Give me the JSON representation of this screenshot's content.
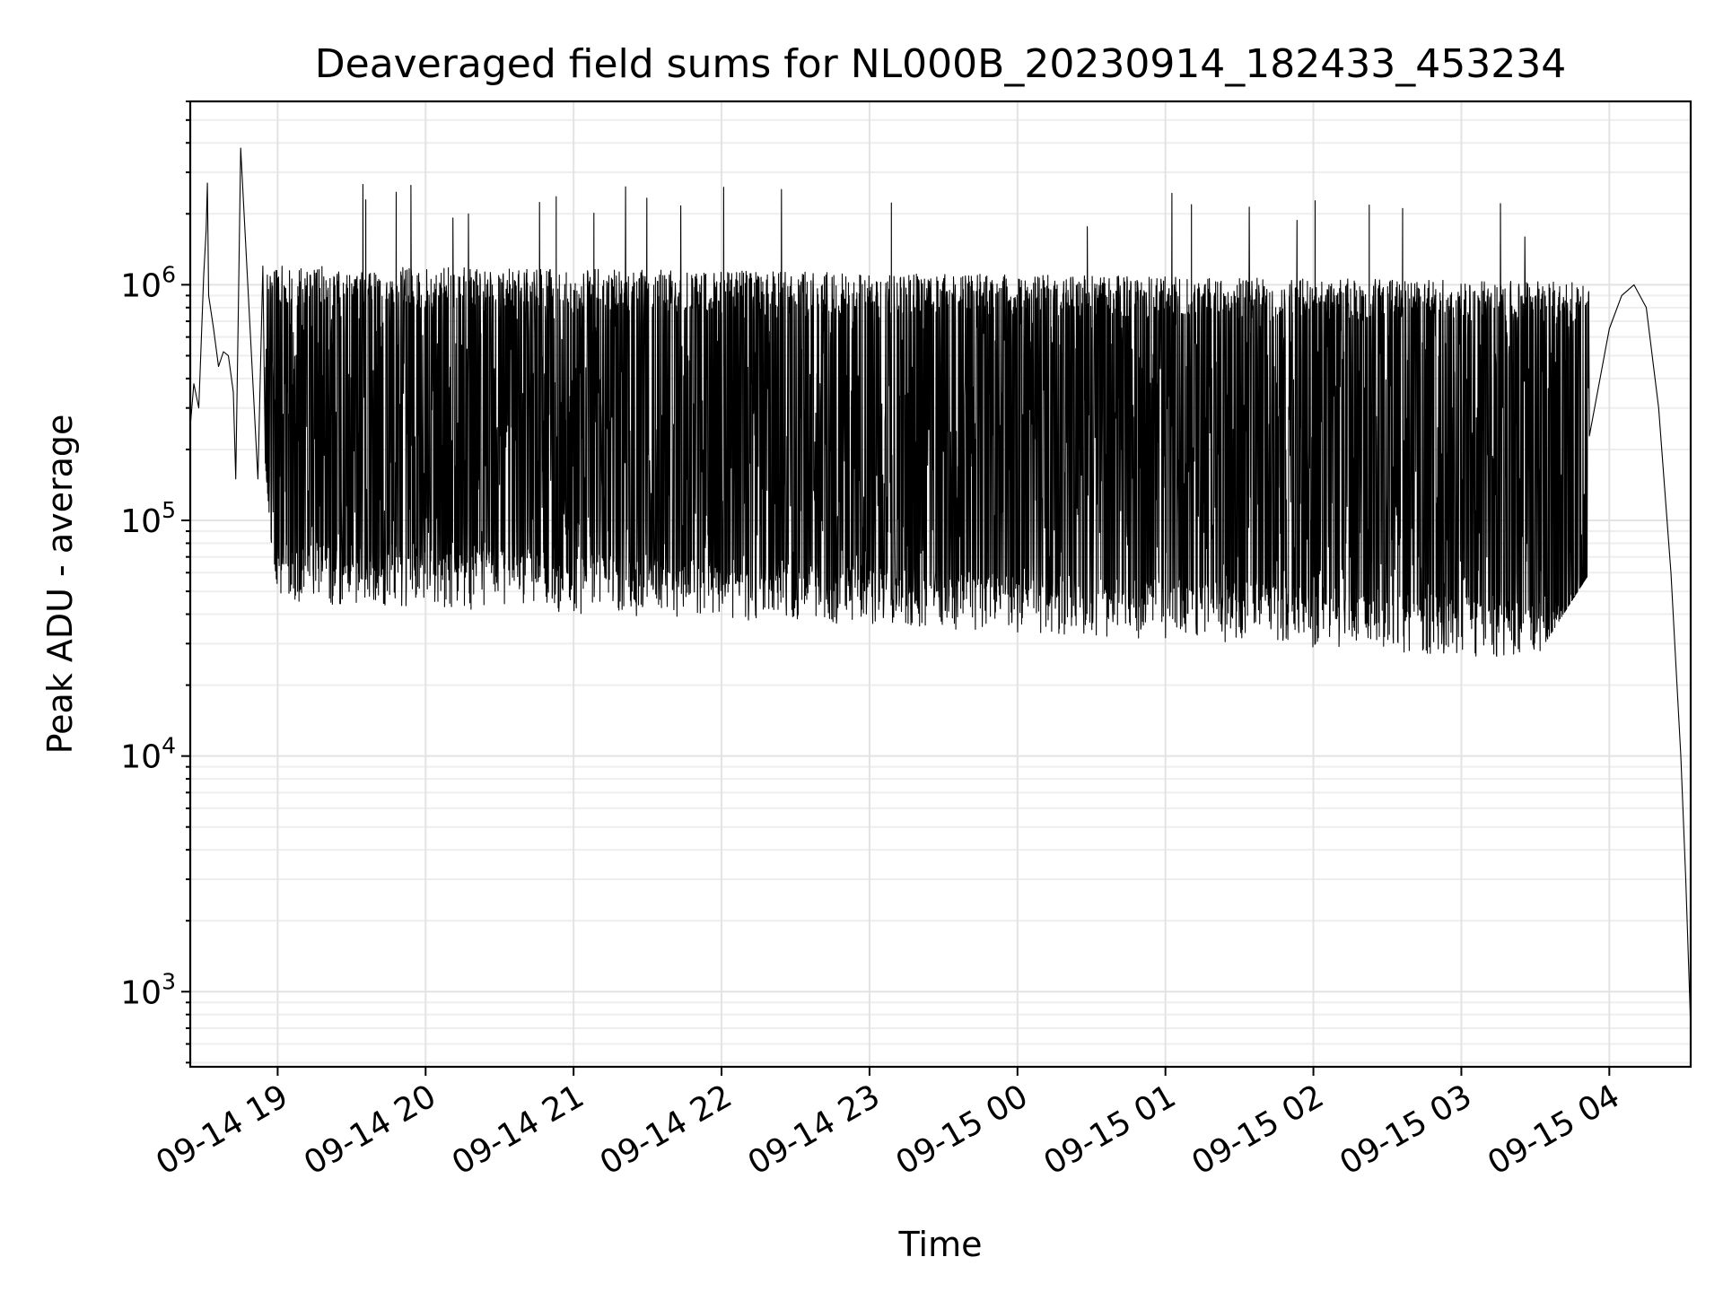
{
  "chart_data": {
    "type": "line",
    "title": "Deaveraged field sums for NL000B_20230914_182433_453234",
    "xlabel": "Time",
    "ylabel": "Peak ADU - average",
    "yscale": "log",
    "ylim": [
      480,
      6000000
    ],
    "xlim": [
      "2023-09-14T18:24:33",
      "2023-09-15T04:33:00"
    ],
    "grid": true,
    "legend": "none",
    "line_color": "#000000",
    "y_ticks": [
      {
        "value": 1000,
        "base": "10",
        "exp": "3"
      },
      {
        "value": 10000,
        "base": "10",
        "exp": "4"
      },
      {
        "value": 100000,
        "base": "10",
        "exp": "5"
      },
      {
        "value": 1000000,
        "base": "10",
        "exp": "6"
      }
    ],
    "x_ticks": [
      {
        "value": "2023-09-14T19:00",
        "label": "09-14 19"
      },
      {
        "value": "2023-09-14T20:00",
        "label": "09-14 20"
      },
      {
        "value": "2023-09-14T21:00",
        "label": "09-14 21"
      },
      {
        "value": "2023-09-14T22:00",
        "label": "09-14 22"
      },
      {
        "value": "2023-09-14T23:00",
        "label": "09-14 23"
      },
      {
        "value": "2023-09-15T00:00",
        "label": "09-15 00"
      },
      {
        "value": "2023-09-15T01:00",
        "label": "09-15 01"
      },
      {
        "value": "2023-09-15T02:00",
        "label": "09-15 02"
      },
      {
        "value": "2023-09-15T03:00",
        "label": "09-15 03"
      },
      {
        "value": "2023-09-15T04:00",
        "label": "09-15 04"
      }
    ],
    "series": [
      {
        "points": [
          [
            "2023-09-14T18:24:33",
            250000
          ],
          [
            "2023-09-14T18:26",
            380000
          ],
          [
            "2023-09-14T18:28",
            300000
          ],
          [
            "2023-09-14T18:30",
            1100000
          ],
          [
            "2023-09-14T18:31",
            1700000
          ],
          [
            "2023-09-14T18:31:30",
            2700000
          ],
          [
            "2023-09-14T18:32",
            900000
          ],
          [
            "2023-09-14T18:34",
            650000
          ],
          [
            "2023-09-14T18:36",
            450000
          ],
          [
            "2023-09-14T18:38",
            520000
          ],
          [
            "2023-09-14T18:40",
            500000
          ],
          [
            "2023-09-14T18:42",
            350000
          ],
          [
            "2023-09-14T18:43",
            150000
          ],
          [
            "2023-09-14T18:44",
            700000
          ],
          [
            "2023-09-14T18:45",
            3800000
          ],
          [
            "2023-09-14T18:52",
            150000
          ],
          [
            "2023-09-14T18:54",
            1200000
          ],
          [
            "2023-09-14T19:00",
            180000
          ],
          [
            "2023-09-14T19:30",
            150000
          ],
          [
            "2023-09-14T20:00",
            140000
          ],
          [
            "2023-09-14T20:30",
            145000
          ],
          [
            "2023-09-14T21:00",
            150000
          ],
          [
            "2023-09-14T21:30",
            145000
          ],
          [
            "2023-09-14T22:00",
            140000
          ],
          [
            "2023-09-14T22:30",
            135000
          ],
          [
            "2023-09-14T23:00",
            130000
          ],
          [
            "2023-09-14T23:30",
            120000
          ],
          [
            "2023-09-15T00:00",
            110000
          ],
          [
            "2023-09-15T00:30",
            100000
          ],
          [
            "2023-09-15T01:00",
            95000
          ],
          [
            "2023-09-15T01:30",
            90000
          ],
          [
            "2023-09-15T02:00",
            90000
          ],
          [
            "2023-09-15T02:30",
            90000
          ],
          [
            "2023-09-15T03:00",
            95000
          ],
          [
            "2023-09-15T03:30",
            130000
          ],
          [
            "2023-09-15T03:52",
            300000
          ],
          [
            "2023-09-15T04:00",
            650000
          ],
          [
            "2023-09-15T04:05",
            900000
          ],
          [
            "2023-09-15T04:10",
            1000000
          ],
          [
            "2023-09-15T04:15",
            800000
          ],
          [
            "2023-09-15T04:20",
            300000
          ],
          [
            "2023-09-15T04:25",
            60000
          ],
          [
            "2023-09-15T04:29",
            10000
          ],
          [
            "2023-09-15T04:31",
            3000
          ],
          [
            "2023-09-15T04:33",
            700
          ]
        ]
      }
    ]
  }
}
